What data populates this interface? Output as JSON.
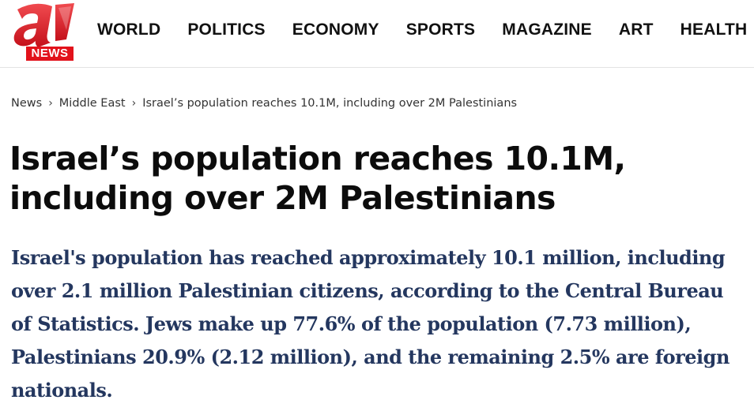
{
  "site": {
    "logo_letter": "a",
    "logo_badge": "NEWS",
    "brand_color": "#e2121b"
  },
  "nav": {
    "items": [
      {
        "label": "WORLD"
      },
      {
        "label": "POLITICS"
      },
      {
        "label": "ECONOMY"
      },
      {
        "label": "SPORTS"
      },
      {
        "label": "MAGAZINE"
      },
      {
        "label": "ART"
      },
      {
        "label": "HEALTH"
      }
    ]
  },
  "breadcrumb": {
    "items": [
      {
        "label": "News"
      },
      {
        "label": "Middle East"
      },
      {
        "label": "Israel’s population reaches 10.1M, including over 2M Palestinians"
      }
    ],
    "separator": "›"
  },
  "article": {
    "headline": "Israel’s population reaches 10.1M, including over 2M Palestinians",
    "lead": "Israel's population has reached approximately 10.1 million, including over 2.1 million Palestinian citizens, according to the Central Bureau of Statistics. Jews make up 77.6% of the population (7.73 million), Palestinians 20.9% (2.12 million), and the remaining 2.5% are foreign nationals.",
    "lead_color": "#24375f"
  }
}
